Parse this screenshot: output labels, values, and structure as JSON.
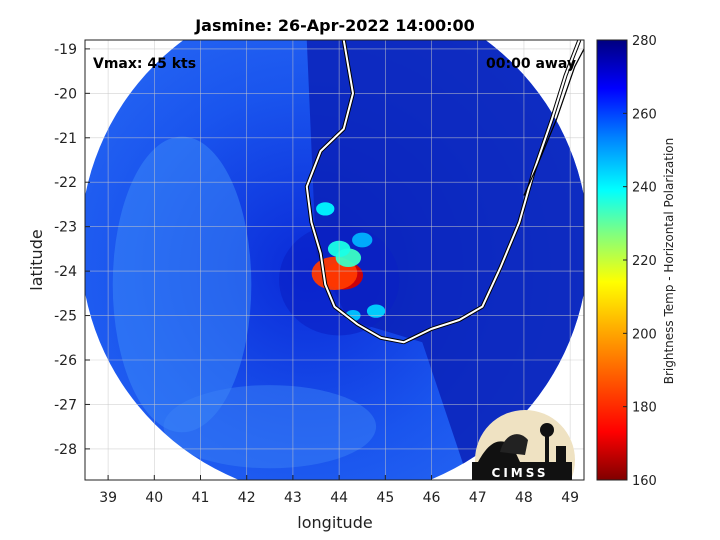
{
  "chart_data": {
    "type": "heatmap",
    "title": "Jasmine: 26-Apr-2022 14:00:00",
    "xlabel": "longitude",
    "ylabel": "latitude",
    "xlim": [
      38.5,
      49.3
    ],
    "ylim": [
      -28.7,
      -18.8
    ],
    "xticks": [
      "39",
      "40",
      "41",
      "42",
      "43",
      "44",
      "45",
      "46",
      "47",
      "48",
      "49"
    ],
    "yticks": [
      "-19",
      "-20",
      "-21",
      "-22",
      "-23",
      "-24",
      "-25",
      "-26",
      "-27",
      "-28"
    ],
    "grid": true,
    "annotations": {
      "vmax": "Vmax: 45 kts",
      "away": "00:00 away"
    },
    "colorbar": {
      "label": "Brightness Temp - Horizontal Polarization",
      "range": [
        160,
        280
      ],
      "ticks": [
        "160",
        "180",
        "200",
        "220",
        "240",
        "260",
        "280"
      ],
      "colors": [
        "#800000",
        "#ff0000",
        "#ffaa00",
        "#ffff00",
        "#80ff80",
        "#00ffff",
        "#0080ff",
        "#0000ff",
        "#000080"
      ]
    },
    "swath": {
      "center": [
        43.9,
        -23.4
      ],
      "radius_deg": 5.5
    },
    "coastline_madagascar": [
      [
        49.2,
        -18.8
      ],
      [
        48.9,
        -19.6
      ],
      [
        48.6,
        -20.6
      ],
      [
        48.2,
        -21.8
      ],
      [
        47.9,
        -22.9
      ],
      [
        47.5,
        -23.9
      ],
      [
        47.1,
        -24.8
      ],
      [
        46.6,
        -25.1
      ],
      [
        46.0,
        -25.3
      ],
      [
        45.4,
        -25.6
      ],
      [
        44.9,
        -25.5
      ],
      [
        44.4,
        -25.2
      ],
      [
        43.9,
        -24.8
      ],
      [
        43.7,
        -24.3
      ],
      [
        43.6,
        -23.6
      ],
      [
        43.4,
        -22.9
      ],
      [
        43.3,
        -22.1
      ],
      [
        43.6,
        -21.3
      ],
      [
        44.1,
        -20.8
      ],
      [
        44.3,
        -20.0
      ],
      [
        44.2,
        -19.4
      ],
      [
        44.1,
        -18.8
      ]
    ],
    "coastline_secondary": [
      [
        49.4,
        -18.8
      ],
      [
        49.1,
        -19.4
      ],
      [
        48.7,
        -20.6
      ],
      [
        48.3,
        -21.6
      ],
      [
        48.0,
        -22.3
      ]
    ],
    "features": [
      {
        "lon": 44.1,
        "lat": -24.1,
        "tb": 170,
        "r": 0.38
      },
      {
        "lon": 43.9,
        "lat": -24.05,
        "tb": 180,
        "r": 0.45
      },
      {
        "lon": 44.2,
        "lat": -23.7,
        "tb": 228,
        "r": 0.25
      },
      {
        "lon": 44.0,
        "lat": -23.5,
        "tb": 232,
        "r": 0.22
      },
      {
        "lon": 43.7,
        "lat": -22.6,
        "tb": 236,
        "r": 0.18
      },
      {
        "lon": 44.5,
        "lat": -23.3,
        "tb": 244,
        "r": 0.2
      },
      {
        "lon": 44.8,
        "lat": -24.9,
        "tb": 240,
        "r": 0.18
      },
      {
        "lon": 44.3,
        "lat": -25.0,
        "tb": 242,
        "r": 0.15
      }
    ]
  },
  "logo": {
    "text": "CIMSS"
  }
}
